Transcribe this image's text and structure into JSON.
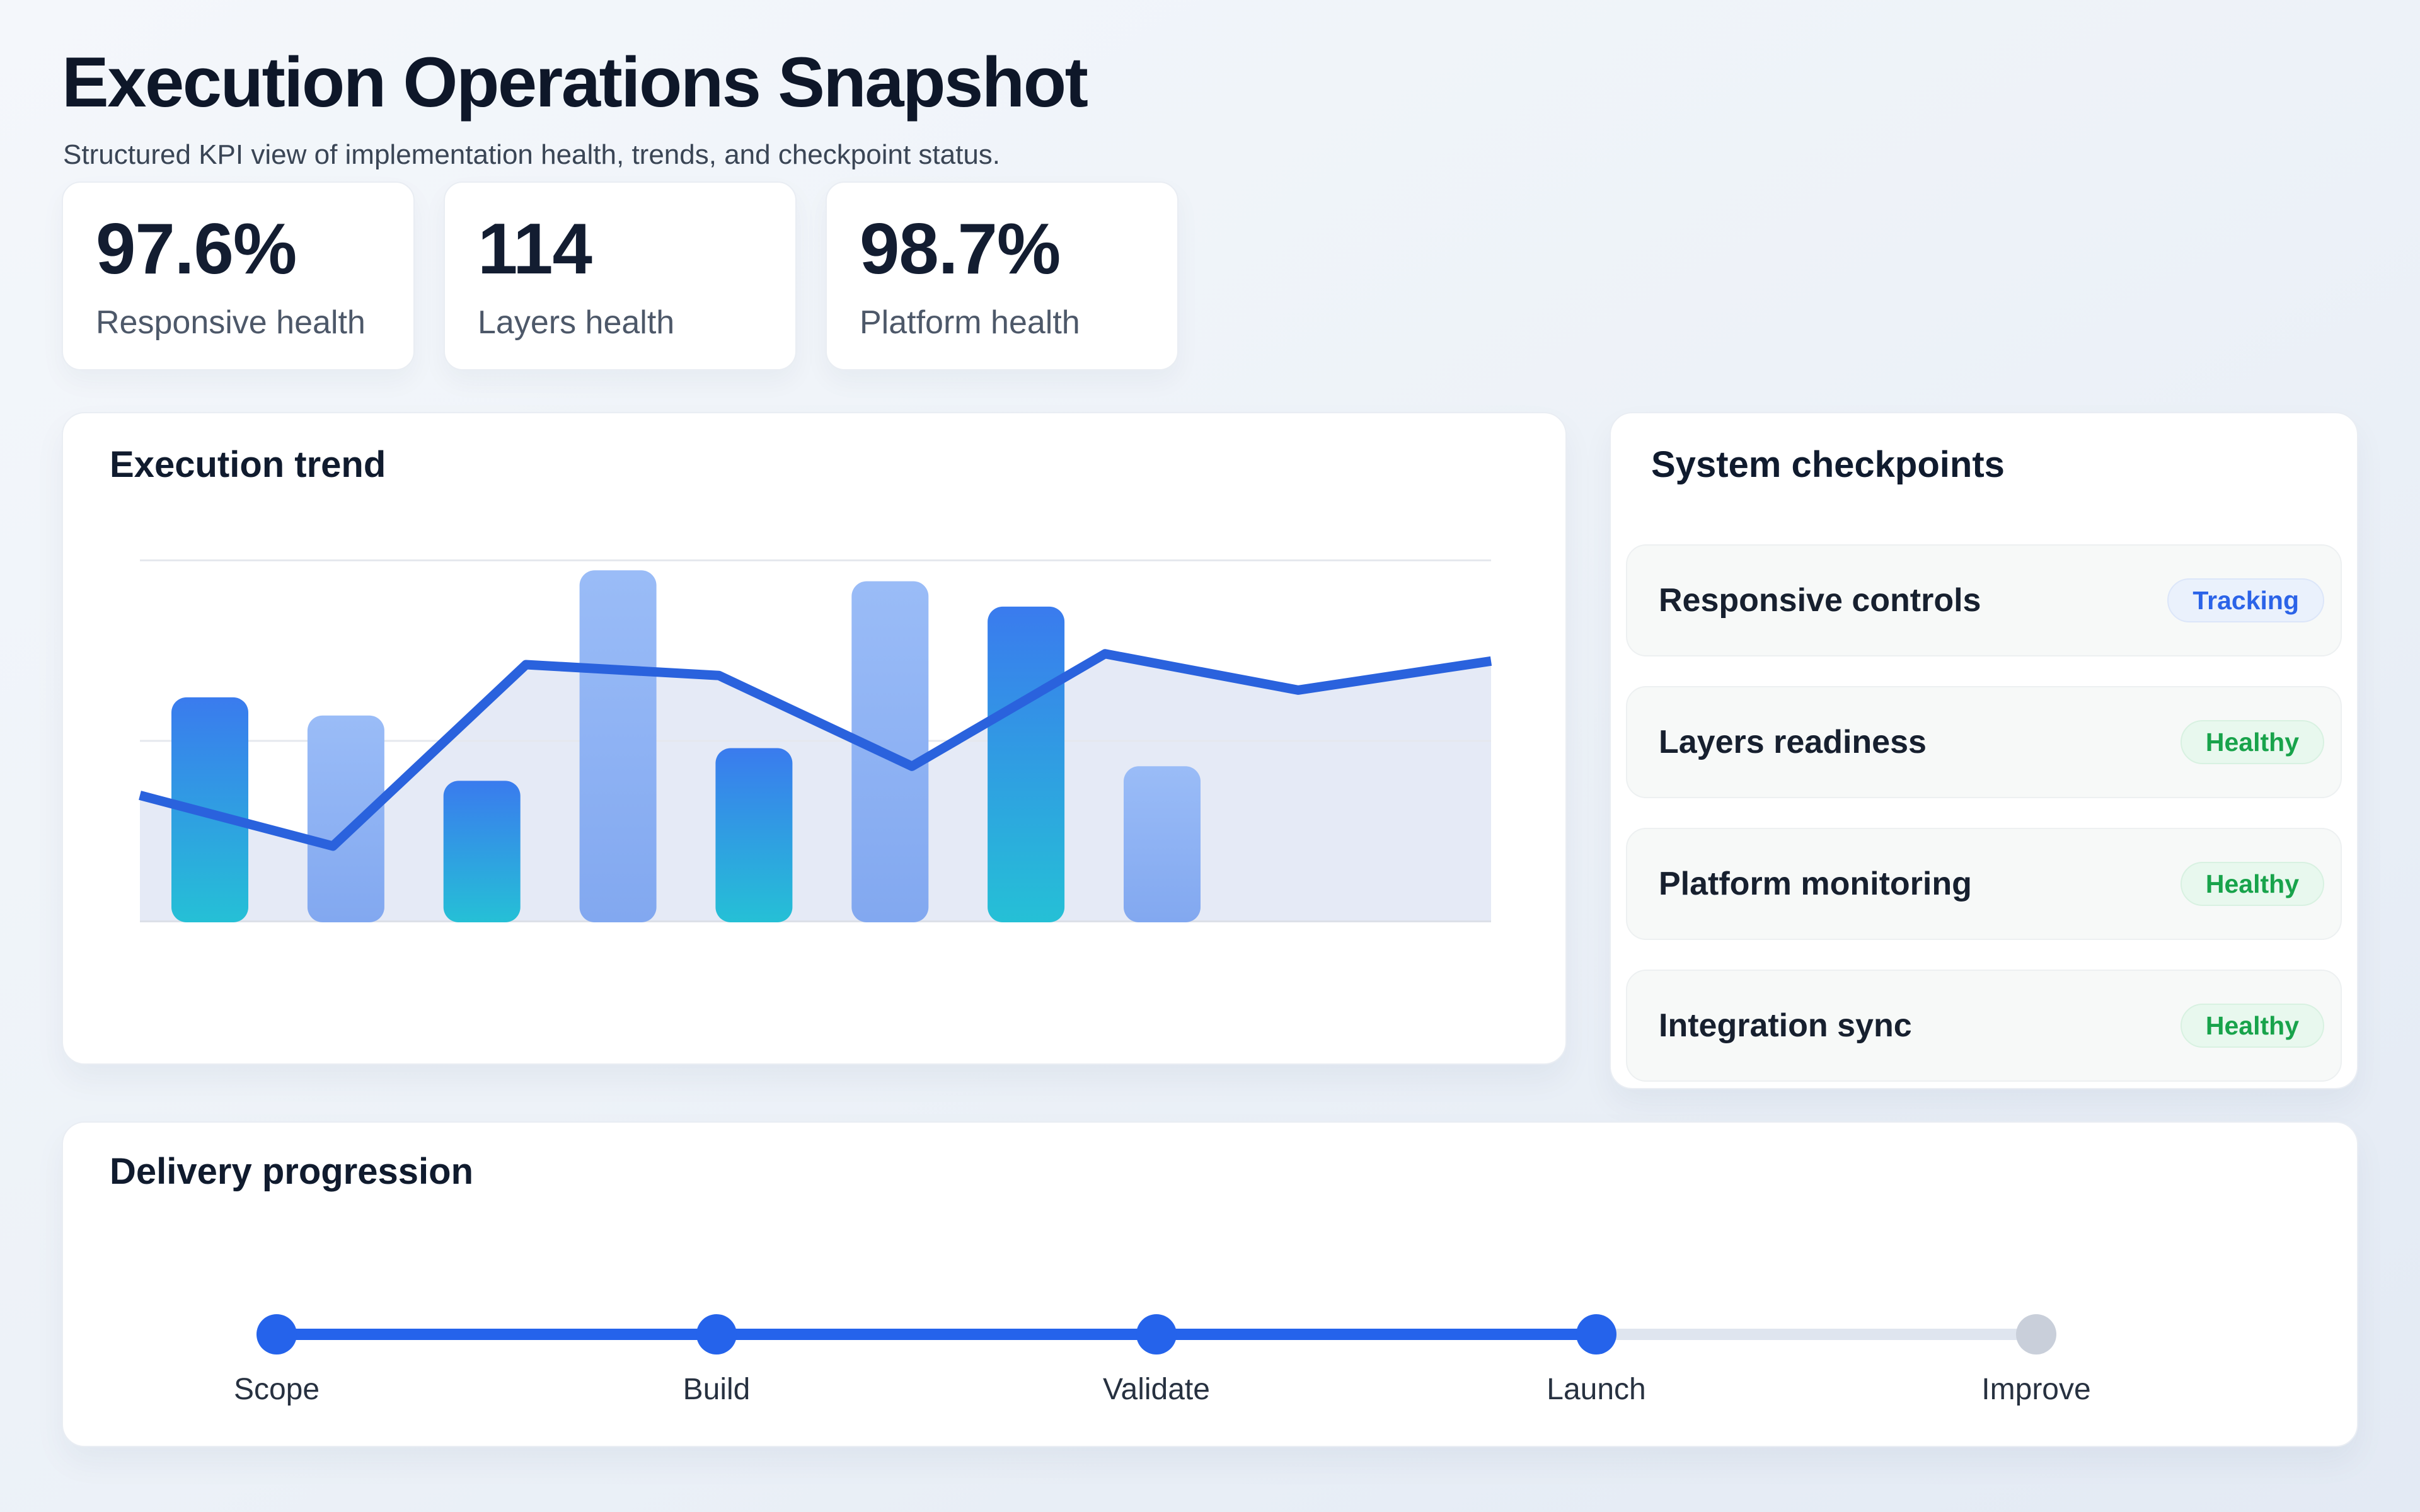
{
  "header": {
    "title": "Execution Operations Snapshot",
    "subtitle": "Structured KPI view of implementation health, trends, and checkpoint status."
  },
  "kpis": [
    {
      "value": "97.6%",
      "label": "Responsive health"
    },
    {
      "value": "114",
      "label": "Layers health"
    },
    {
      "value": "98.7%",
      "label": "Platform health"
    }
  ],
  "chart_data": {
    "type": "bar+line",
    "title": "Execution trend",
    "bar_values": [
      62,
      57,
      39,
      97,
      48,
      94,
      87,
      43
    ],
    "bar_styles": [
      "gradient",
      "light",
      "gradient",
      "light",
      "gradient",
      "light",
      "gradient",
      "light"
    ],
    "line_values": [
      35,
      21,
      71,
      68,
      43,
      74,
      64,
      72
    ],
    "ylim": [
      0,
      100
    ],
    "gridlines": [
      0,
      50,
      100
    ],
    "x_axis_labels": [],
    "legend": "none",
    "colors": {
      "bar_gradient_top": "#3a7bee",
      "bar_gradient_bottom": "#25c0d6",
      "bar_light_top": "#9abcf7",
      "bar_light_bottom": "#82a8f0",
      "line": "#2a62dd",
      "area_fill": "#e5eaf6",
      "gridline": "#e5e8ee",
      "baseline": "#dce0e8"
    }
  },
  "checkpoints": {
    "title": "System checkpoints",
    "rows": [
      {
        "label": "Responsive controls",
        "status": "Tracking",
        "state": "tracking"
      },
      {
        "label": "Layers readiness",
        "status": "Healthy",
        "state": "healthy"
      },
      {
        "label": "Platform monitoring",
        "status": "Healthy",
        "state": "healthy"
      },
      {
        "label": "Integration sync",
        "status": "Healthy",
        "state": "healthy"
      }
    ]
  },
  "delivery": {
    "title": "Delivery progression",
    "milestones": [
      {
        "label": "Scope",
        "state": "complete"
      },
      {
        "label": "Build",
        "state": "complete"
      },
      {
        "label": "Validate",
        "state": "complete"
      },
      {
        "label": "Launch",
        "state": "complete"
      },
      {
        "label": "Improve",
        "state": "pending"
      }
    ],
    "accent_color": "#2563eb",
    "pending_color": "#c9cfda"
  }
}
